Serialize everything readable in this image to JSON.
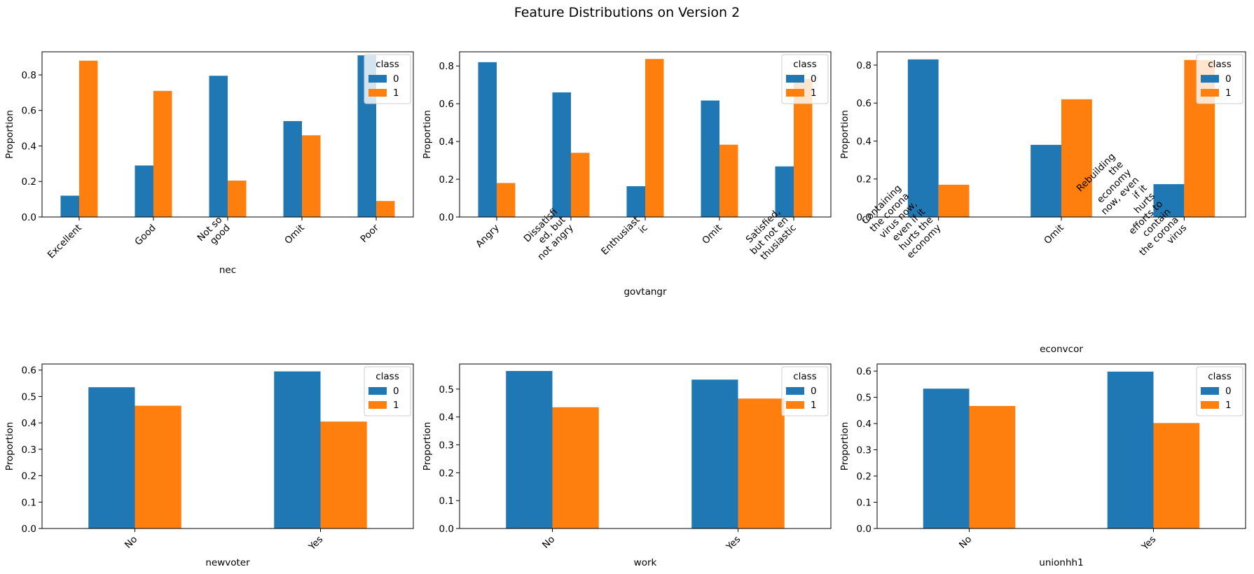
{
  "figure": {
    "title": "Feature Distributions on Version 2"
  },
  "chart_data": [
    {
      "type": "bar",
      "xlabel": "nec",
      "ylabel": "Proportion",
      "categories": [
        "Excellent",
        "Good",
        "Not so good",
        "Omit",
        "Poor"
      ],
      "category_lines": [
        [
          "Excellent"
        ],
        [
          "Good"
        ],
        [
          "Not so",
          "good"
        ],
        [
          "Omit"
        ],
        [
          "Poor"
        ]
      ],
      "ylim": [
        0,
        0.93
      ],
      "yticks": [
        0.0,
        0.2,
        0.4,
        0.6,
        0.8
      ],
      "yticklabels": [
        "0.0",
        "0.2",
        "0.4",
        "0.6",
        "0.8"
      ],
      "legend": {
        "title": "class",
        "position": "top-right"
      },
      "series": [
        {
          "name": "0",
          "color": "#1f77b4",
          "values": [
            0.12,
            0.29,
            0.795,
            0.54,
            0.91
          ]
        },
        {
          "name": "1",
          "color": "#ff7f0e",
          "values": [
            0.88,
            0.71,
            0.205,
            0.46,
            0.09
          ]
        }
      ]
    },
    {
      "type": "bar",
      "xlabel": "govtangr",
      "ylabel": "Proportion",
      "categories": [
        "Angry",
        "Dissatisfied, but not angry",
        "Enthusiastic",
        "Omit",
        "Satisfied, but not enthusiastic"
      ],
      "category_lines": [
        [
          "Angry"
        ],
        [
          "Dissatisfi",
          "ed, but",
          "not angry"
        ],
        [
          "Enthusiast",
          "ic"
        ],
        [
          "Omit"
        ],
        [
          "Satisfied,",
          "but not en",
          "thusiastic"
        ]
      ],
      "ylim": [
        0,
        0.875
      ],
      "yticks": [
        0.0,
        0.2,
        0.4,
        0.6,
        0.8
      ],
      "yticklabels": [
        "0.0",
        "0.2",
        "0.4",
        "0.6",
        "0.8"
      ],
      "legend": {
        "title": "class",
        "position": "top-right"
      },
      "series": [
        {
          "name": "0",
          "color": "#1f77b4",
          "values": [
            0.82,
            0.66,
            0.163,
            0.617,
            0.268
          ]
        },
        {
          "name": "1",
          "color": "#ff7f0e",
          "values": [
            0.18,
            0.34,
            0.837,
            0.383,
            0.732
          ]
        }
      ]
    },
    {
      "type": "bar",
      "xlabel": "econvcor",
      "ylabel": "Proportion",
      "categories": [
        "Containing the corona virus now, even if it hurts the economy",
        "Omit",
        "Rebuilding the economy now, even if it hurts efforts to contain the corona virus"
      ],
      "category_lines": [
        [
          "Containing",
          "the corona",
          "virus now,",
          "even if it",
          "hurts the",
          "economy"
        ],
        [
          "Omit"
        ],
        [
          "Rebuilding",
          "the",
          "economy",
          "now, even",
          "if it",
          "hurts",
          "efforts to",
          "contain",
          "the corona",
          "virus"
        ]
      ],
      "ylim": [
        0,
        0.87
      ],
      "yticks": [
        0.0,
        0.2,
        0.4,
        0.6,
        0.8
      ],
      "yticklabels": [
        "0.0",
        "0.2",
        "0.4",
        "0.6",
        "0.8"
      ],
      "legend": {
        "title": "class",
        "position": "top-right"
      },
      "series": [
        {
          "name": "0",
          "color": "#1f77b4",
          "values": [
            0.83,
            0.38,
            0.173
          ]
        },
        {
          "name": "1",
          "color": "#ff7f0e",
          "values": [
            0.17,
            0.62,
            0.827
          ]
        }
      ]
    },
    {
      "type": "bar",
      "xlabel": "newvoter",
      "ylabel": "Proportion",
      "categories": [
        "No",
        "Yes"
      ],
      "category_lines": [
        [
          "No"
        ],
        [
          "Yes"
        ]
      ],
      "ylim": [
        0,
        0.623
      ],
      "yticks": [
        0.0,
        0.1,
        0.2,
        0.3,
        0.4,
        0.5,
        0.6
      ],
      "yticklabels": [
        "0.0",
        "0.1",
        "0.2",
        "0.3",
        "0.4",
        "0.5",
        "0.6"
      ],
      "legend": {
        "title": "class",
        "position": "top-right"
      },
      "series": [
        {
          "name": "0",
          "color": "#1f77b4",
          "values": [
            0.535,
            0.595
          ]
        },
        {
          "name": "1",
          "color": "#ff7f0e",
          "values": [
            0.465,
            0.405
          ]
        }
      ]
    },
    {
      "type": "bar",
      "xlabel": "work",
      "ylabel": "Proportion",
      "categories": [
        "No",
        "Yes"
      ],
      "category_lines": [
        [
          "No"
        ],
        [
          "Yes"
        ]
      ],
      "ylim": [
        0,
        0.59
      ],
      "yticks": [
        0.0,
        0.1,
        0.2,
        0.3,
        0.4,
        0.5
      ],
      "yticklabels": [
        "0.0",
        "0.1",
        "0.2",
        "0.3",
        "0.4",
        "0.5"
      ],
      "legend": {
        "title": "class",
        "position": "top-right"
      },
      "series": [
        {
          "name": "0",
          "color": "#1f77b4",
          "values": [
            0.565,
            0.534
          ]
        },
        {
          "name": "1",
          "color": "#ff7f0e",
          "values": [
            0.435,
            0.466
          ]
        }
      ]
    },
    {
      "type": "bar",
      "xlabel": "unionhh1",
      "ylabel": "Proportion",
      "categories": [
        "No",
        "Yes"
      ],
      "category_lines": [
        [
          "No"
        ],
        [
          "Yes"
        ]
      ],
      "ylim": [
        0,
        0.627
      ],
      "yticks": [
        0.0,
        0.1,
        0.2,
        0.3,
        0.4,
        0.5,
        0.6
      ],
      "yticklabels": [
        "0.0",
        "0.1",
        "0.2",
        "0.3",
        "0.4",
        "0.5",
        "0.6"
      ],
      "legend": {
        "title": "class",
        "position": "top-right"
      },
      "series": [
        {
          "name": "0",
          "color": "#1f77b4",
          "values": [
            0.533,
            0.598
          ]
        },
        {
          "name": "1",
          "color": "#ff7f0e",
          "values": [
            0.467,
            0.402
          ]
        }
      ]
    }
  ]
}
